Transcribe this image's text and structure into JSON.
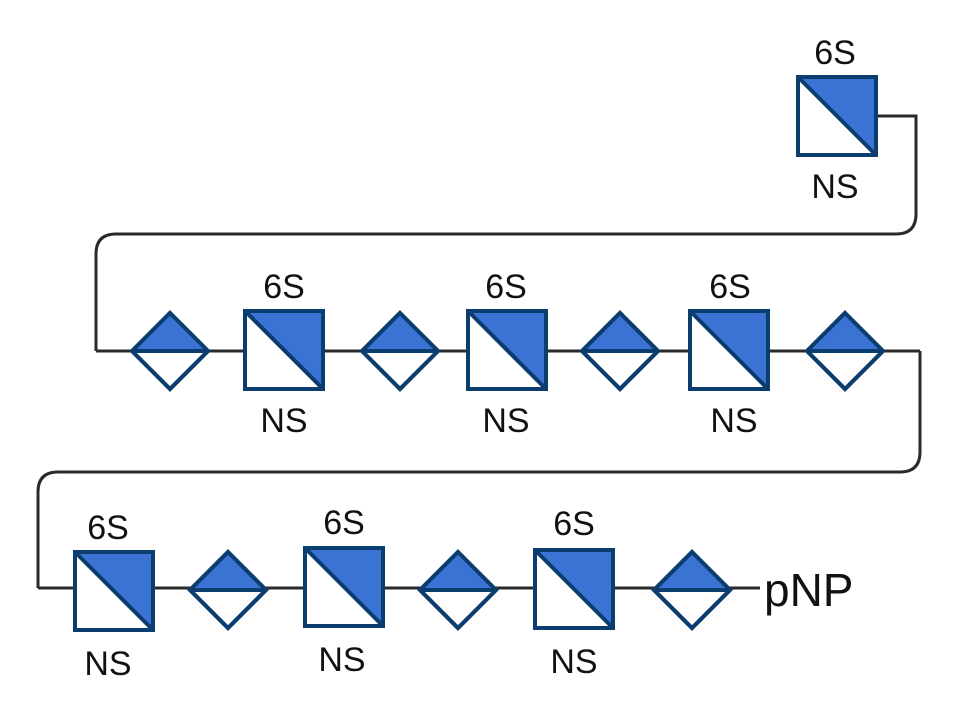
{
  "colors": {
    "fill": "#3a73d4",
    "outline": "#0b3d6e",
    "link": "#2a2a2a"
  },
  "squares": [
    {
      "top_label": "6S",
      "bottom_label": "NS"
    },
    {
      "top_label": "6S",
      "bottom_label": "NS"
    },
    {
      "top_label": "6S",
      "bottom_label": "NS"
    },
    {
      "top_label": "6S",
      "bottom_label": "NS"
    },
    {
      "top_label": "6S",
      "bottom_label": "NS"
    },
    {
      "top_label": "6S",
      "bottom_label": "NS"
    },
    {
      "top_label": "6S",
      "bottom_label": "NS"
    }
  ],
  "diamond_count": 7,
  "terminal_label": "pNP"
}
